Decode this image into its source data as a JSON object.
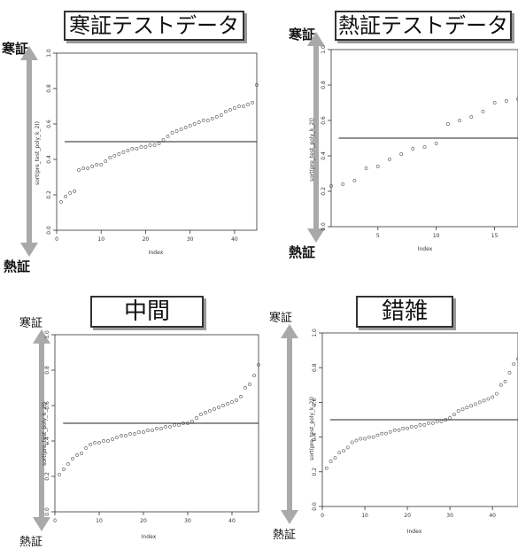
{
  "panels": [
    {
      "title": "寒証テストデータ",
      "top_label": "寒証",
      "bottom_label": "熱証"
    },
    {
      "title": "熱証テストデータ",
      "top_label": "寒証",
      "bottom_label": "熱証"
    },
    {
      "title": "中間",
      "top_label": "寒証",
      "bottom_label": "熱証"
    },
    {
      "title": "錯雑",
      "top_label": "寒証",
      "bottom_label": "熱証"
    }
  ],
  "colors": {
    "points": "#555555",
    "threshold": "#222222",
    "arrow": "#a9a9a9",
    "frame": "#333333"
  },
  "chart_data": [
    {
      "type": "scatter",
      "title": "寒証テストデータ",
      "xlabel": "Index",
      "ylabel": "sort(pre_test_poly_k_2))",
      "xlim": [
        0,
        45
      ],
      "ylim": [
        0,
        1
      ],
      "xticks": [
        0,
        10,
        20,
        30,
        40
      ],
      "yticks": [
        0.0,
        0.2,
        0.4,
        0.6,
        0.8,
        1.0
      ],
      "threshold": 0.5,
      "y": [
        0.16,
        0.19,
        0.21,
        0.22,
        0.34,
        0.35,
        0.35,
        0.36,
        0.37,
        0.37,
        0.39,
        0.41,
        0.42,
        0.43,
        0.44,
        0.45,
        0.46,
        0.46,
        0.47,
        0.47,
        0.48,
        0.48,
        0.49,
        0.51,
        0.53,
        0.55,
        0.56,
        0.57,
        0.58,
        0.59,
        0.6,
        0.61,
        0.62,
        0.62,
        0.63,
        0.64,
        0.65,
        0.67,
        0.68,
        0.69,
        0.7,
        0.7,
        0.71,
        0.72,
        0.82
      ]
    },
    {
      "type": "scatter",
      "title": "熱証テストデータ",
      "xlabel": "Index",
      "ylabel": "sort(pre_test_poly_k_2))",
      "xlim": [
        1,
        17
      ],
      "ylim": [
        0,
        1
      ],
      "xticks": [
        5,
        10,
        15
      ],
      "yticks": [
        0.0,
        0.2,
        0.4,
        0.6,
        0.8,
        1.0
      ],
      "threshold": 0.5,
      "y": [
        0.23,
        0.24,
        0.26,
        0.33,
        0.34,
        0.38,
        0.41,
        0.44,
        0.45,
        0.47,
        0.58,
        0.6,
        0.62,
        0.65,
        0.7,
        0.71,
        0.72
      ]
    },
    {
      "type": "scatter",
      "title": "中間",
      "xlabel": "Index",
      "ylabel": "sort(pre_test_poly_k_2))",
      "xlim": [
        0,
        46
      ],
      "ylim": [
        0,
        1
      ],
      "xticks": [
        0,
        10,
        20,
        30,
        40
      ],
      "yticks": [
        0.0,
        0.2,
        0.4,
        0.6,
        0.8,
        1.0
      ],
      "threshold": 0.5,
      "y": [
        0.21,
        0.24,
        0.27,
        0.3,
        0.32,
        0.33,
        0.36,
        0.38,
        0.39,
        0.39,
        0.4,
        0.4,
        0.41,
        0.42,
        0.43,
        0.43,
        0.44,
        0.44,
        0.45,
        0.45,
        0.46,
        0.46,
        0.47,
        0.47,
        0.48,
        0.48,
        0.49,
        0.49,
        0.5,
        0.5,
        0.51,
        0.53,
        0.55,
        0.56,
        0.57,
        0.58,
        0.59,
        0.6,
        0.61,
        0.62,
        0.63,
        0.65,
        0.7,
        0.72,
        0.77,
        0.83
      ]
    },
    {
      "type": "scatter",
      "title": "錯雑",
      "xlabel": "Index",
      "ylabel": "sort(pre_test_poly_k_2))",
      "xlim": [
        0,
        46
      ],
      "ylim": [
        0,
        1
      ],
      "xticks": [
        0,
        10,
        20,
        30,
        40
      ],
      "yticks": [
        0.0,
        0.2,
        0.4,
        0.6,
        0.8,
        1.0
      ],
      "threshold": 0.5,
      "y": [
        0.22,
        0.26,
        0.28,
        0.31,
        0.32,
        0.34,
        0.37,
        0.38,
        0.39,
        0.39,
        0.4,
        0.4,
        0.41,
        0.42,
        0.42,
        0.43,
        0.44,
        0.44,
        0.45,
        0.45,
        0.46,
        0.46,
        0.47,
        0.47,
        0.48,
        0.48,
        0.49,
        0.49,
        0.5,
        0.51,
        0.53,
        0.55,
        0.56,
        0.57,
        0.58,
        0.59,
        0.6,
        0.61,
        0.62,
        0.63,
        0.65,
        0.7,
        0.72,
        0.77,
        0.82,
        0.85
      ]
    }
  ]
}
